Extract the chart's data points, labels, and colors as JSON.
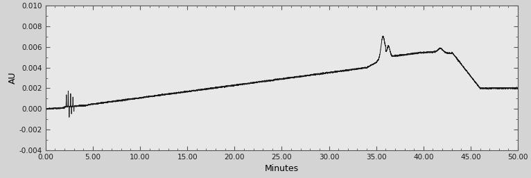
{
  "title": "",
  "xlabel": "Minutes",
  "ylabel": "AU",
  "xlim": [
    0.0,
    50.0
  ],
  "ylim": [
    -0.004,
    0.01
  ],
  "yticks": [
    -0.004,
    -0.002,
    0.0,
    0.002,
    0.004,
    0.006,
    0.008,
    0.01
  ],
  "xticks": [
    0.0,
    5.0,
    10.0,
    15.0,
    20.0,
    25.0,
    30.0,
    35.0,
    40.0,
    45.0,
    50.0
  ],
  "line_color": "#1a1a1a",
  "bg_color": "#d4d4d4",
  "plot_bg_color": "#e8e8e8"
}
